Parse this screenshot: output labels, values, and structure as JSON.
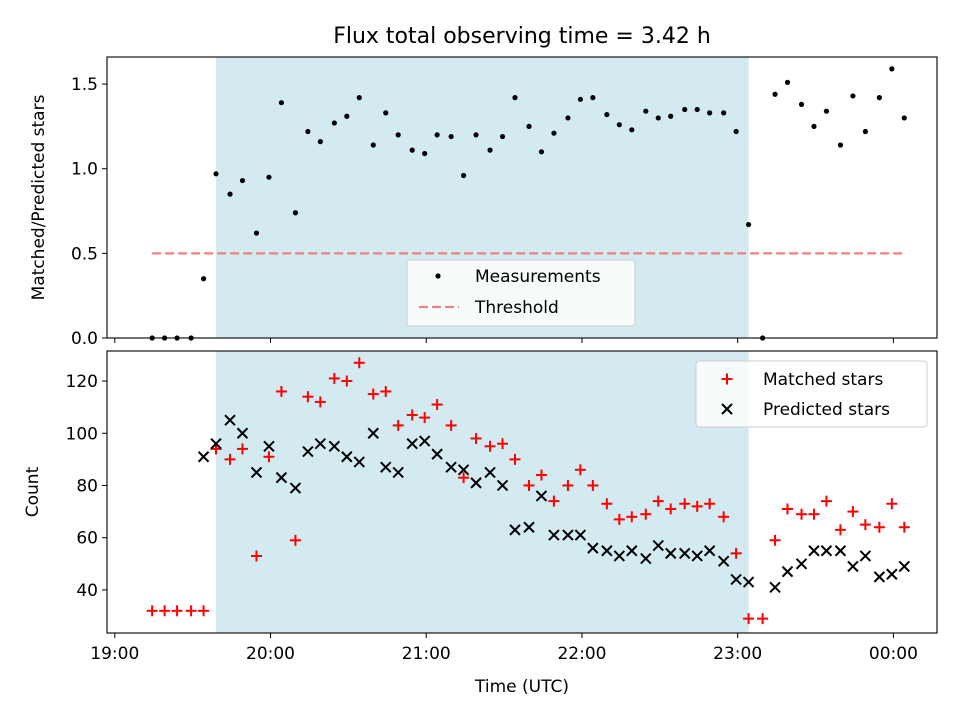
{
  "figure": {
    "title": "Flux total observing time = 3.42 h",
    "xlabel": "Time (UTC)"
  },
  "chart_data": [
    {
      "type": "scatter",
      "panel": "top",
      "ylabel": "Matched/Predicted stars",
      "xlim": [
        18.95,
        24.28
      ],
      "ylim": [
        0,
        1.66
      ],
      "yticks": [
        0.0,
        0.5,
        1.0,
        1.5
      ],
      "ytick_labels": [
        "0.0",
        "0.5",
        "1.0",
        "1.5"
      ],
      "shaded_interval": [
        19.65,
        23.07
      ],
      "shade_color": "#d3eaf0",
      "legend": {
        "placement": "lower center",
        "entries": [
          "Measurements",
          "Threshold"
        ]
      },
      "threshold": {
        "name": "Threshold",
        "value": 0.5,
        "x_range": [
          19.24,
          24.07
        ],
        "color": "#f08080"
      },
      "series": [
        {
          "name": "Measurements",
          "color": "#000000",
          "points": [
            [
              19.24,
              0.0
            ],
            [
              19.32,
              0.0
            ],
            [
              19.4,
              0.0
            ],
            [
              19.49,
              0.0
            ],
            [
              19.57,
              0.35
            ],
            [
              19.65,
              0.97
            ],
            [
              19.74,
              0.85
            ],
            [
              19.82,
              0.93
            ],
            [
              19.91,
              0.62
            ],
            [
              19.99,
              0.95
            ],
            [
              20.07,
              1.39
            ],
            [
              20.16,
              0.74
            ],
            [
              20.24,
              1.22
            ],
            [
              20.32,
              1.16
            ],
            [
              20.41,
              1.27
            ],
            [
              20.49,
              1.31
            ],
            [
              20.57,
              1.42
            ],
            [
              20.66,
              1.14
            ],
            [
              20.74,
              1.33
            ],
            [
              20.82,
              1.2
            ],
            [
              20.91,
              1.11
            ],
            [
              20.99,
              1.09
            ],
            [
              21.07,
              1.2
            ],
            [
              21.16,
              1.19
            ],
            [
              21.24,
              0.96
            ],
            [
              21.32,
              1.2
            ],
            [
              21.41,
              1.11
            ],
            [
              21.49,
              1.19
            ],
            [
              21.57,
              1.42
            ],
            [
              21.66,
              1.25
            ],
            [
              21.74,
              1.1
            ],
            [
              21.82,
              1.21
            ],
            [
              21.91,
              1.3
            ],
            [
              21.99,
              1.41
            ],
            [
              22.07,
              1.42
            ],
            [
              22.16,
              1.32
            ],
            [
              22.24,
              1.26
            ],
            [
              22.32,
              1.23
            ],
            [
              22.41,
              1.34
            ],
            [
              22.49,
              1.3
            ],
            [
              22.57,
              1.31
            ],
            [
              22.66,
              1.35
            ],
            [
              22.74,
              1.35
            ],
            [
              22.82,
              1.33
            ],
            [
              22.91,
              1.33
            ],
            [
              22.99,
              1.22
            ],
            [
              23.07,
              0.67
            ],
            [
              23.16,
              0.0
            ],
            [
              23.24,
              1.44
            ],
            [
              23.32,
              1.51
            ],
            [
              23.41,
              1.38
            ],
            [
              23.49,
              1.25
            ],
            [
              23.57,
              1.34
            ],
            [
              23.66,
              1.14
            ],
            [
              23.74,
              1.43
            ],
            [
              23.82,
              1.22
            ],
            [
              23.91,
              1.42
            ],
            [
              23.99,
              1.59
            ],
            [
              24.07,
              1.3
            ]
          ]
        }
      ]
    },
    {
      "type": "scatter",
      "panel": "bottom",
      "ylabel": "Count",
      "xlabel": "Time (UTC)",
      "xlim": [
        18.95,
        24.28
      ],
      "ylim": [
        23.5,
        131.5
      ],
      "yticks": [
        40,
        60,
        80,
        100,
        120
      ],
      "ytick_labels": [
        "40",
        "60",
        "80",
        "100",
        "120"
      ],
      "xticks": [
        19,
        20,
        21,
        22,
        23,
        24
      ],
      "xtick_labels": [
        "19:00",
        "20:00",
        "21:00",
        "22:00",
        "23:00",
        "00:00"
      ],
      "shaded_interval": [
        19.65,
        23.07
      ],
      "shade_color": "#d3eaf0",
      "legend": {
        "placement": "upper right",
        "entries": [
          "Matched stars",
          "Predicted stars"
        ]
      },
      "series": [
        {
          "name": "Matched stars",
          "marker": "plus",
          "color": "#ff0000",
          "points": [
            [
              19.24,
              32
            ],
            [
              19.32,
              32
            ],
            [
              19.4,
              32
            ],
            [
              19.49,
              32
            ],
            [
              19.57,
              32
            ],
            [
              19.65,
              94
            ],
            [
              19.74,
              90
            ],
            [
              19.82,
              94
            ],
            [
              19.91,
              53
            ],
            [
              19.99,
              91
            ],
            [
              20.07,
              116
            ],
            [
              20.16,
              59
            ],
            [
              20.24,
              114
            ],
            [
              20.32,
              112
            ],
            [
              20.41,
              121
            ],
            [
              20.49,
              120
            ],
            [
              20.57,
              127
            ],
            [
              20.66,
              115
            ],
            [
              20.74,
              116
            ],
            [
              20.82,
              103
            ],
            [
              20.91,
              107
            ],
            [
              20.99,
              106
            ],
            [
              21.07,
              111
            ],
            [
              21.16,
              103
            ],
            [
              21.24,
              83
            ],
            [
              21.32,
              98
            ],
            [
              21.41,
              95
            ],
            [
              21.49,
              96
            ],
            [
              21.57,
              90
            ],
            [
              21.66,
              80
            ],
            [
              21.74,
              84
            ],
            [
              21.82,
              74
            ],
            [
              21.91,
              80
            ],
            [
              21.99,
              86
            ],
            [
              22.07,
              80
            ],
            [
              22.16,
              73
            ],
            [
              22.24,
              67
            ],
            [
              22.32,
              68
            ],
            [
              22.41,
              69
            ],
            [
              22.49,
              74
            ],
            [
              22.57,
              71
            ],
            [
              22.66,
              73
            ],
            [
              22.74,
              72
            ],
            [
              22.82,
              73
            ],
            [
              22.91,
              68
            ],
            [
              22.99,
              54
            ],
            [
              23.07,
              29
            ],
            [
              23.16,
              29
            ],
            [
              23.24,
              59
            ],
            [
              23.32,
              71
            ],
            [
              23.41,
              69
            ],
            [
              23.49,
              69
            ],
            [
              23.57,
              74
            ],
            [
              23.66,
              63
            ],
            [
              23.74,
              70
            ],
            [
              23.82,
              65
            ],
            [
              23.91,
              64
            ],
            [
              23.99,
              73
            ],
            [
              24.07,
              64
            ]
          ]
        },
        {
          "name": "Predicted stars",
          "marker": "x",
          "color": "#000000",
          "points": [
            [
              19.57,
              91
            ],
            [
              19.65,
              96
            ],
            [
              19.74,
              105
            ],
            [
              19.82,
              100
            ],
            [
              19.91,
              85
            ],
            [
              19.99,
              95
            ],
            [
              20.07,
              83
            ],
            [
              20.16,
              79
            ],
            [
              20.24,
              93
            ],
            [
              20.32,
              96
            ],
            [
              20.41,
              95
            ],
            [
              20.49,
              91
            ],
            [
              20.57,
              89
            ],
            [
              20.66,
              100
            ],
            [
              20.74,
              87
            ],
            [
              20.82,
              85
            ],
            [
              20.91,
              96
            ],
            [
              20.99,
              97
            ],
            [
              21.07,
              92
            ],
            [
              21.16,
              87
            ],
            [
              21.24,
              86
            ],
            [
              21.32,
              81
            ],
            [
              21.41,
              85
            ],
            [
              21.49,
              80
            ],
            [
              21.57,
              63
            ],
            [
              21.66,
              64
            ],
            [
              21.74,
              76
            ],
            [
              21.82,
              61
            ],
            [
              21.91,
              61
            ],
            [
              21.99,
              61
            ],
            [
              22.07,
              56
            ],
            [
              22.16,
              55
            ],
            [
              22.24,
              53
            ],
            [
              22.32,
              55
            ],
            [
              22.41,
              52
            ],
            [
              22.49,
              57
            ],
            [
              22.57,
              54
            ],
            [
              22.66,
              54
            ],
            [
              22.74,
              53
            ],
            [
              22.82,
              55
            ],
            [
              22.91,
              51
            ],
            [
              22.99,
              44
            ],
            [
              23.07,
              43
            ],
            [
              23.24,
              41
            ],
            [
              23.32,
              47
            ],
            [
              23.41,
              50
            ],
            [
              23.49,
              55
            ],
            [
              23.57,
              55
            ],
            [
              23.66,
              55
            ],
            [
              23.74,
              49
            ],
            [
              23.82,
              53
            ],
            [
              23.91,
              45
            ],
            [
              23.99,
              46
            ],
            [
              24.07,
              49
            ]
          ]
        }
      ]
    }
  ]
}
